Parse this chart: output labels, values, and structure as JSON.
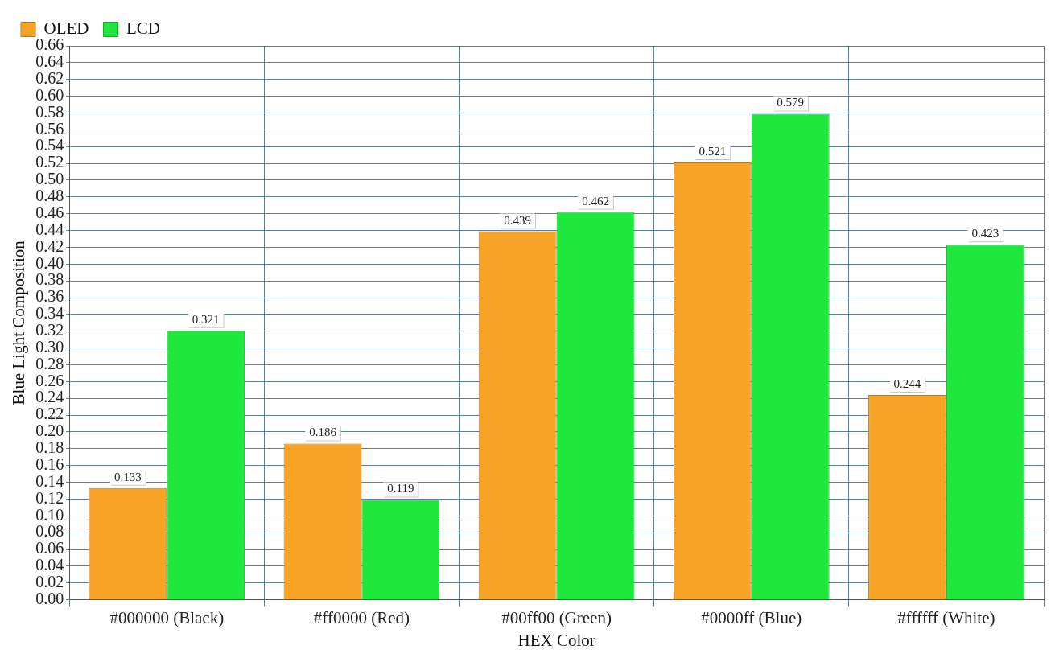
{
  "chart_data": {
    "type": "bar",
    "xlabel": "HEX Color",
    "ylabel": "Blue Light Composition",
    "categories": [
      "#000000 (Black)",
      "#ff0000 (Red)",
      "#00ff00 (Green)",
      "#0000ff (Blue)",
      "#ffffff (White)"
    ],
    "series": [
      {
        "name": "OLED",
        "color": "#f7a325",
        "values": [
          0.133,
          0.186,
          0.439,
          0.521,
          0.244
        ]
      },
      {
        "name": "LCD",
        "color": "#1ee83c",
        "values": [
          0.321,
          0.119,
          0.462,
          0.579,
          0.423
        ]
      }
    ],
    "ylim": [
      0,
      0.66
    ],
    "yticks": [
      {
        "value": 0,
        "label": "0.00"
      },
      {
        "value": 0.02,
        "label": "0.02"
      },
      {
        "value": 0.04,
        "label": "0.04"
      },
      {
        "value": 0.06,
        "label": "0.06"
      },
      {
        "value": 0.08,
        "label": "0.08"
      },
      {
        "value": 0.1,
        "label": "0.10"
      },
      {
        "value": 0.12,
        "label": "0.12"
      },
      {
        "value": 0.14,
        "label": "0.14"
      },
      {
        "value": 0.16,
        "label": "0.16"
      },
      {
        "value": 0.18,
        "label": "0.18"
      },
      {
        "value": 0.2,
        "label": "0.20"
      },
      {
        "value": 0.22,
        "label": "0.22"
      },
      {
        "value": 0.24,
        "label": "0.24"
      },
      {
        "value": 0.26,
        "label": "0.26"
      },
      {
        "value": 0.28,
        "label": "0.28"
      },
      {
        "value": 0.3,
        "label": "0.30"
      },
      {
        "value": 0.32,
        "label": "0.32"
      },
      {
        "value": 0.34,
        "label": "0.34"
      },
      {
        "value": 0.36,
        "label": "0.36"
      },
      {
        "value": 0.38,
        "label": "0.38"
      },
      {
        "value": 0.4,
        "label": "0.40"
      },
      {
        "value": 0.42,
        "label": "0.42"
      },
      {
        "value": 0.44,
        "label": "0.44"
      },
      {
        "value": 0.46,
        "label": "0.46"
      },
      {
        "value": 0.48,
        "label": "0.48"
      },
      {
        "value": 0.5,
        "label": "0.50"
      },
      {
        "value": 0.52,
        "label": "0.52"
      },
      {
        "value": 0.54,
        "label": "0.54"
      },
      {
        "value": 0.56,
        "label": "0.56"
      },
      {
        "value": 0.58,
        "label": "0.58"
      },
      {
        "value": 0.6,
        "label": "0.60"
      },
      {
        "value": 0.62,
        "label": "0.62"
      },
      {
        "value": 0.64,
        "label": "0.64"
      },
      {
        "value": 0.66,
        "label": "0.66"
      }
    ],
    "grid": true,
    "legend": "top left",
    "data_labels": true
  }
}
